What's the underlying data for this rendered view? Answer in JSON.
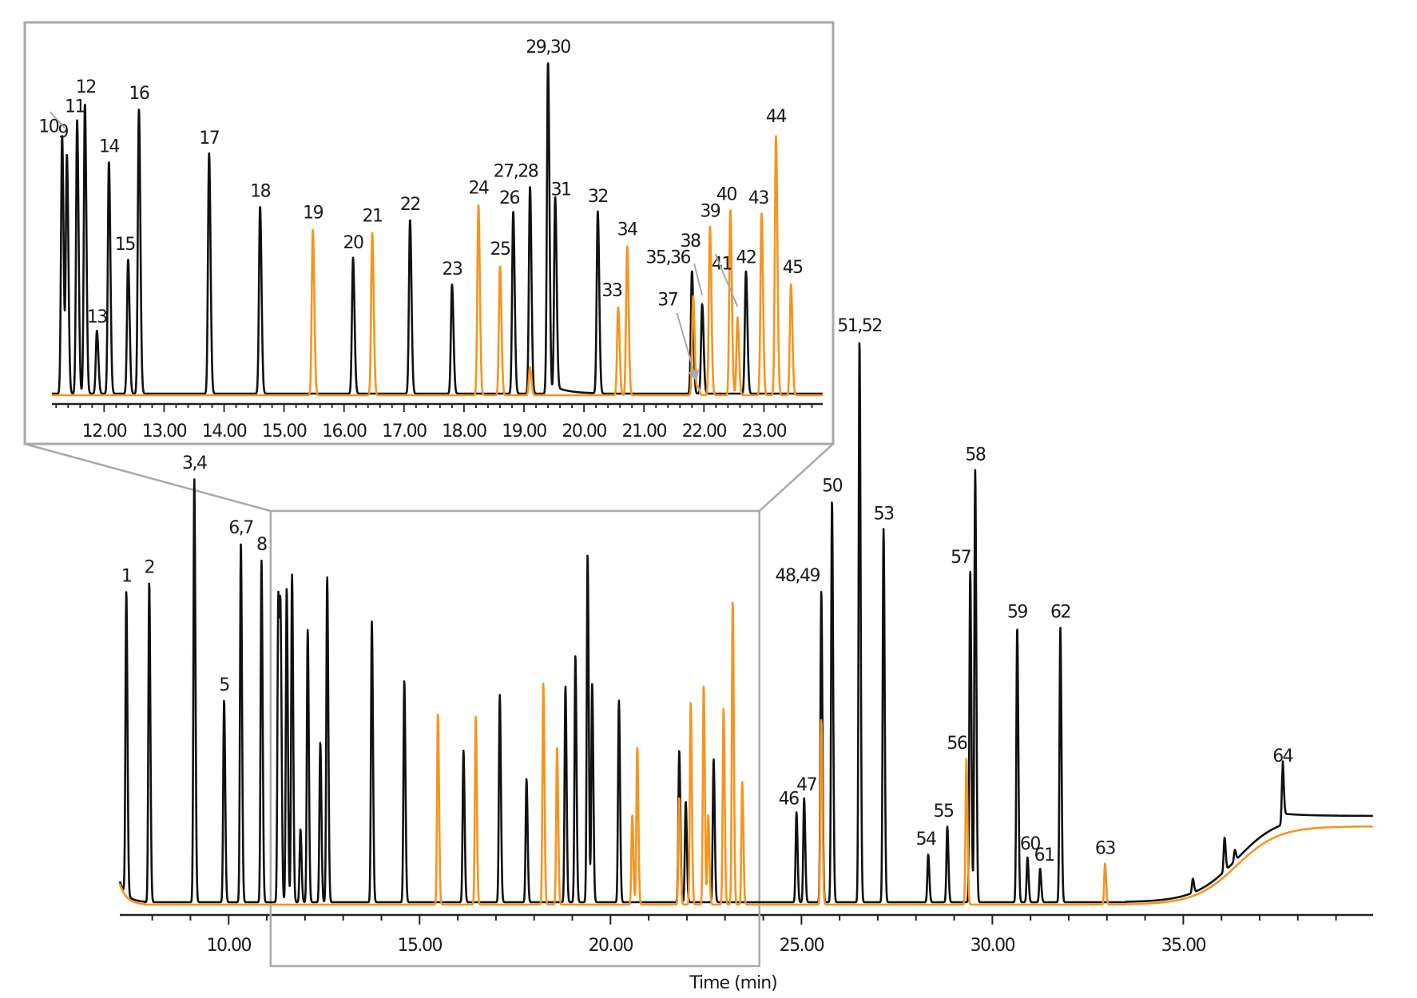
{
  "chart_data": {
    "type": "line",
    "title": "",
    "xlabel": "Time (min)",
    "ylabel": "",
    "colors": {
      "series_a": "#111111",
      "series_b": "#f7941d",
      "frame": "#a7a9ac",
      "callout": "#a7a9ac"
    },
    "series": [
      {
        "name": "black trace",
        "color": "#111111"
      },
      {
        "name": "orange trace",
        "color": "#f7941d"
      }
    ],
    "main": {
      "xlim": [
        7.15,
        39.97
      ],
      "ylim": [
        0,
        100
      ],
      "x_ticks": [
        "10.00",
        "15.00",
        "20.00",
        "25.00",
        "30.00",
        "35.00"
      ],
      "x_tick_values": [
        10,
        15,
        20,
        25,
        30,
        35
      ],
      "minor_tick_step": 1,
      "zoom_window": [
        11.1,
        23.9
      ],
      "peaks": [
        {
          "t": 7.32,
          "h": 54,
          "s": 0,
          "label": "1"
        },
        {
          "t": 7.92,
          "h": 57,
          "s": 0,
          "label": "2"
        },
        {
          "t": 9.1,
          "h": 75.5,
          "s": 0,
          "label": "3,4"
        },
        {
          "t": 9.88,
          "h": 36,
          "s": 0,
          "label": "5"
        },
        {
          "t": 10.32,
          "h": 64,
          "s": 0,
          "label": "6,7"
        },
        {
          "t": 10.86,
          "h": 61,
          "s": 0,
          "label": "8"
        },
        {
          "t": 11.3,
          "h": 54,
          "s": 0
        },
        {
          "t": 11.36,
          "h": 46,
          "s": 0
        },
        {
          "t": 11.52,
          "h": 56,
          "s": 0
        },
        {
          "t": 11.66,
          "h": 58.5,
          "s": 0
        },
        {
          "t": 11.88,
          "h": 13,
          "s": 0
        },
        {
          "t": 12.07,
          "h": 48.5,
          "s": 0
        },
        {
          "t": 12.4,
          "h": 28.5,
          "s": 0
        },
        {
          "t": 12.58,
          "h": 58,
          "s": 0
        },
        {
          "t": 13.75,
          "h": 50,
          "s": 0
        },
        {
          "t": 14.6,
          "h": 39.5,
          "s": 0
        },
        {
          "t": 15.48,
          "h": 34,
          "s": 1
        },
        {
          "t": 16.15,
          "h": 27,
          "s": 0
        },
        {
          "t": 16.47,
          "h": 33.5,
          "s": 1
        },
        {
          "t": 17.1,
          "h": 37,
          "s": 0
        },
        {
          "t": 17.8,
          "h": 22,
          "s": 0
        },
        {
          "t": 18.24,
          "h": 39.5,
          "s": 1
        },
        {
          "t": 18.6,
          "h": 28,
          "s": 1
        },
        {
          "t": 18.82,
          "h": 38.5,
          "s": 0
        },
        {
          "t": 19.08,
          "h": 44,
          "s": 0
        },
        {
          "t": 19.4,
          "h": 62,
          "s": 0
        },
        {
          "t": 19.52,
          "h": 39,
          "s": 0
        },
        {
          "t": 20.22,
          "h": 36,
          "s": 0
        },
        {
          "t": 20.57,
          "h": 16,
          "s": 1
        },
        {
          "t": 20.7,
          "h": 28,
          "s": 1
        },
        {
          "t": 21.8,
          "h": 27,
          "s": 0
        },
        {
          "t": 21.8,
          "h": 19,
          "s": 1
        },
        {
          "t": 21.97,
          "h": 18,
          "s": 0
        },
        {
          "t": 22.1,
          "h": 36,
          "s": 1
        },
        {
          "t": 22.44,
          "h": 39,
          "s": 1
        },
        {
          "t": 22.56,
          "h": 16,
          "s": 1
        },
        {
          "t": 22.7,
          "h": 25.5,
          "s": 0
        },
        {
          "t": 22.96,
          "h": 35,
          "s": 1
        },
        {
          "t": 23.2,
          "h": 54,
          "s": 1
        },
        {
          "t": 23.45,
          "h": 22,
          "s": 1
        },
        {
          "t": 24.87,
          "h": 16,
          "s": 0,
          "label": "46"
        },
        {
          "t": 25.07,
          "h": 18.5,
          "s": 0,
          "label": "47"
        },
        {
          "t": 25.52,
          "h": 55.5,
          "s": 0,
          "label": "48,49"
        },
        {
          "t": 25.52,
          "h": 33,
          "s": 1
        },
        {
          "t": 25.8,
          "h": 71.5,
          "s": 0,
          "label": "50"
        },
        {
          "t": 26.52,
          "h": 100,
          "s": 0,
          "label": "51,52"
        },
        {
          "t": 27.15,
          "h": 66.5,
          "s": 0,
          "label": "53"
        },
        {
          "t": 28.32,
          "h": 8.5,
          "s": 0,
          "label": "54"
        },
        {
          "t": 28.82,
          "h": 13.5,
          "s": 0,
          "label": "55"
        },
        {
          "t": 29.32,
          "h": 26,
          "s": 1,
          "label": "56"
        },
        {
          "t": 29.42,
          "h": 59,
          "s": 0,
          "label": "57"
        },
        {
          "t": 29.55,
          "h": 77,
          "s": 0,
          "label": "58"
        },
        {
          "t": 30.65,
          "h": 49,
          "s": 0,
          "label": "59"
        },
        {
          "t": 30.92,
          "h": 8,
          "s": 0,
          "label": "60"
        },
        {
          "t": 31.25,
          "h": 6,
          "s": 0,
          "label": "61"
        },
        {
          "t": 31.78,
          "h": 49,
          "s": 0,
          "label": "62"
        },
        {
          "t": 32.95,
          "h": 7.3,
          "s": 1,
          "label": "63"
        },
        {
          "t": 35.25,
          "h": 2.5,
          "s": 0
        },
        {
          "t": 36.08,
          "h": 6,
          "s": 0
        },
        {
          "t": 36.35,
          "h": 2,
          "s": 0
        },
        {
          "t": 37.6,
          "h": 9.5,
          "s": 0,
          "label": "64"
        }
      ]
    },
    "inset": {
      "xlim": [
        11.13,
        23.98
      ],
      "ylim": [
        0,
        100
      ],
      "x_ticks": [
        "12.00",
        "13.00",
        "14.00",
        "15.00",
        "16.00",
        "17.00",
        "18.00",
        "19.00",
        "20.00",
        "21.00",
        "22.00",
        "23.00"
      ],
      "x_tick_values": [
        12,
        13,
        14,
        15,
        16,
        17,
        18,
        19,
        20,
        21,
        22,
        23
      ],
      "minor_tick_step": 0.2,
      "peaks": [
        {
          "t": 11.3,
          "h": 78,
          "s": 0,
          "label": "10"
        },
        {
          "t": 11.38,
          "h": 72,
          "s": 0,
          "label": "9"
        },
        {
          "t": 11.55,
          "h": 82.5,
          "s": 0,
          "label": "11"
        },
        {
          "t": 11.68,
          "h": 87.5,
          "s": 0,
          "label": "12"
        },
        {
          "t": 11.88,
          "h": 19,
          "s": 0,
          "label": "13"
        },
        {
          "t": 12.08,
          "h": 70,
          "s": 0,
          "label": "14"
        },
        {
          "t": 12.4,
          "h": 40.5,
          "s": 0,
          "label": "15"
        },
        {
          "t": 12.58,
          "h": 86,
          "s": 0,
          "label": "16"
        },
        {
          "t": 13.75,
          "h": 72.5,
          "s": 0,
          "label": "17"
        },
        {
          "t": 14.6,
          "h": 56.5,
          "s": 0,
          "label": "18"
        },
        {
          "t": 15.48,
          "h": 50,
          "s": 1,
          "label": "19"
        },
        {
          "t": 16.15,
          "h": 41,
          "s": 0,
          "label": "20"
        },
        {
          "t": 16.47,
          "h": 49,
          "s": 1,
          "label": "21"
        },
        {
          "t": 17.1,
          "h": 52.5,
          "s": 0,
          "label": "22"
        },
        {
          "t": 17.8,
          "h": 33,
          "s": 0,
          "label": "23"
        },
        {
          "t": 18.24,
          "h": 57.5,
          "s": 1,
          "label": "24"
        },
        {
          "t": 18.6,
          "h": 39,
          "s": 1,
          "label": "25"
        },
        {
          "t": 18.82,
          "h": 55,
          "s": 0,
          "label": "26"
        },
        {
          "t": 19.1,
          "h": 62.5,
          "s": 0,
          "label": "27,28"
        },
        {
          "t": 19.1,
          "h": 8.5,
          "s": 1
        },
        {
          "t": 19.4,
          "h": 100,
          "s": 0,
          "label": "29,30"
        },
        {
          "t": 19.52,
          "h": 57.5,
          "s": 0,
          "label": "31"
        },
        {
          "t": 20.23,
          "h": 55,
          "s": 0,
          "label": "32"
        },
        {
          "t": 20.57,
          "h": 26.5,
          "s": 1,
          "label": "33"
        },
        {
          "t": 20.72,
          "h": 45,
          "s": 1,
          "label": "34"
        },
        {
          "t": 21.8,
          "h": 37,
          "s": 0,
          "label": "35,36"
        },
        {
          "t": 21.82,
          "h": 30,
          "s": 1
        },
        {
          "t": 21.9,
          "h": 2.5,
          "s": 1,
          "label": "37"
        },
        {
          "t": 21.97,
          "h": 27,
          "s": 0,
          "label": "38"
        },
        {
          "t": 22.1,
          "h": 51,
          "s": 1,
          "label": "39"
        },
        {
          "t": 22.44,
          "h": 56,
          "s": 1,
          "label": "40"
        },
        {
          "t": 22.56,
          "h": 23.5,
          "s": 1,
          "label": "41"
        },
        {
          "t": 22.7,
          "h": 37,
          "s": 0,
          "label": "42"
        },
        {
          "t": 22.96,
          "h": 55,
          "s": 1,
          "label": "43"
        },
        {
          "t": 23.2,
          "h": 78.5,
          "s": 1,
          "label": "44"
        },
        {
          "t": 23.45,
          "h": 33.5,
          "s": 1,
          "label": "45"
        }
      ]
    }
  }
}
